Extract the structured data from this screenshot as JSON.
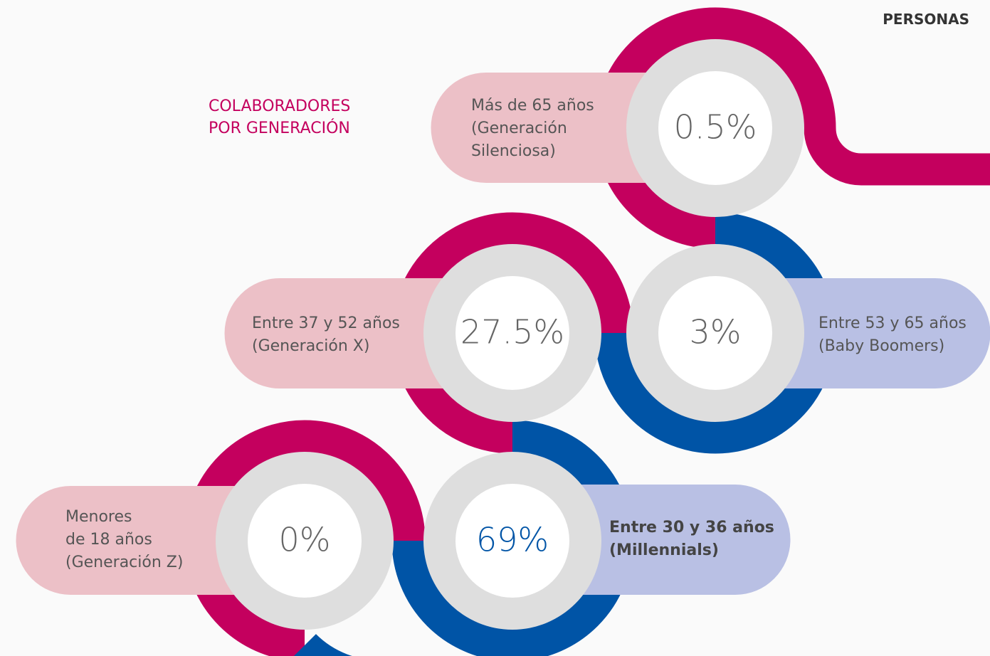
{
  "header": {
    "section": "PERSONAS"
  },
  "title": [
    "COLABORADORES",
    "POR GENERACIÓN"
  ],
  "groups": [
    {
      "value": "0.5%",
      "label": [
        "Más de 65 años",
        "(Generación",
        "Silenciosa)"
      ]
    },
    {
      "value": "27.5%",
      "label": [
        "Entre 37 y 52 años",
        "(Generación X)"
      ]
    },
    {
      "value": "3%",
      "label": [
        "Entre 53 y 65 años",
        "(Baby Boomers)"
      ]
    },
    {
      "value": "0%",
      "label": [
        "Menores",
        "de 18 años",
        "(Generación Z)"
      ]
    },
    {
      "value": "69%",
      "label": [
        "Entre 30 y 36 años",
        "(Millennials)"
      ]
    }
  ]
}
